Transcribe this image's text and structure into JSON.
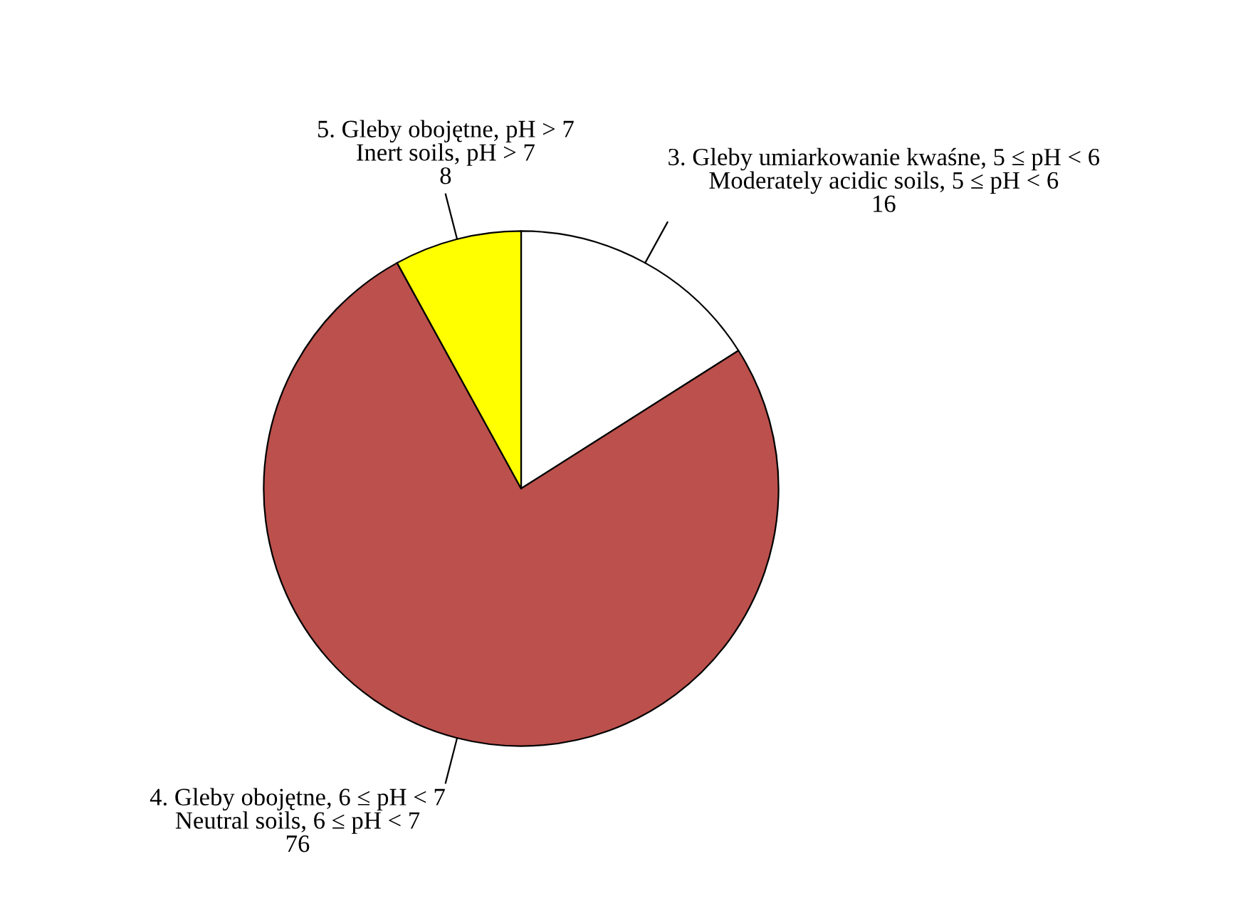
{
  "chart_data": {
    "type": "pie",
    "categories": [
      "3. Gleby umiarkowanie kwaśne, 5 ≤ pH < 6\nModerately acidic soils, 5 ≤ pH < 6",
      "4. Gleby obojętne, 6 ≤ pH < 7\nNeutral soils, 6 ≤ pH < 7",
      "5. Gleby obojętne, pH > 7\nInert soils, pH > 7"
    ],
    "values": [
      16,
      76,
      8
    ],
    "colors": [
      "#ffffff",
      "#bc504c",
      "#ffff00"
    ],
    "data_labels": true
  }
}
